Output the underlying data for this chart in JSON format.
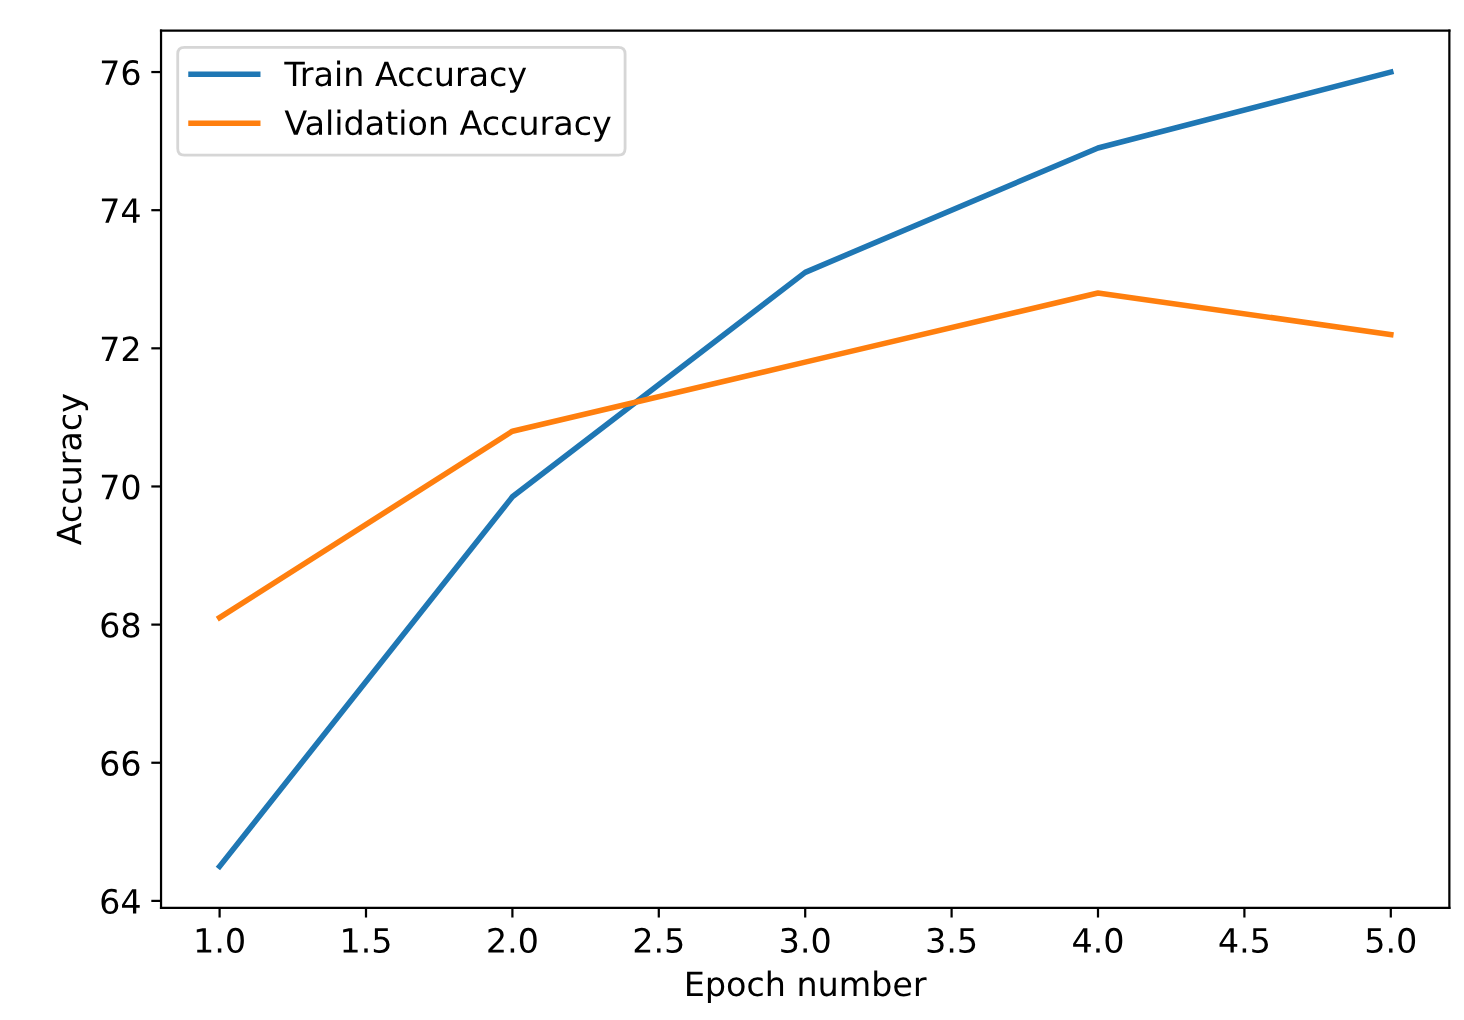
{
  "chart_data": {
    "type": "line",
    "xlabel": "Epoch number",
    "ylabel": "Accuracy",
    "x": [
      1,
      2,
      3,
      4,
      5
    ],
    "series": [
      {
        "name": "Train Accuracy",
        "color": "#1f77b4",
        "values": [
          64.5,
          69.85,
          73.1,
          74.9,
          76.0
        ]
      },
      {
        "name": "Validation Accuracy",
        "color": "#ff7f0e",
        "values": [
          68.1,
          70.8,
          71.8,
          72.8,
          72.2
        ]
      }
    ],
    "xlim": [
      0.8,
      5.2
    ],
    "xticks": [
      {
        "value": 1,
        "label": "1.0"
      },
      {
        "value": 1.5,
        "label": "1.5"
      },
      {
        "value": 2,
        "label": "2.0"
      },
      {
        "value": 2.5,
        "label": "2.5"
      },
      {
        "value": 3,
        "label": "3.0"
      },
      {
        "value": 3.5,
        "label": "3.5"
      },
      {
        "value": 4,
        "label": "4.0"
      },
      {
        "value": 4.5,
        "label": "4.5"
      },
      {
        "value": 5,
        "label": "5.0"
      }
    ],
    "ylim": [
      63.9,
      76.6
    ],
    "yticks": [
      64,
      66,
      68,
      70,
      72,
      74,
      76
    ],
    "legend": "top left",
    "grid": false
  }
}
